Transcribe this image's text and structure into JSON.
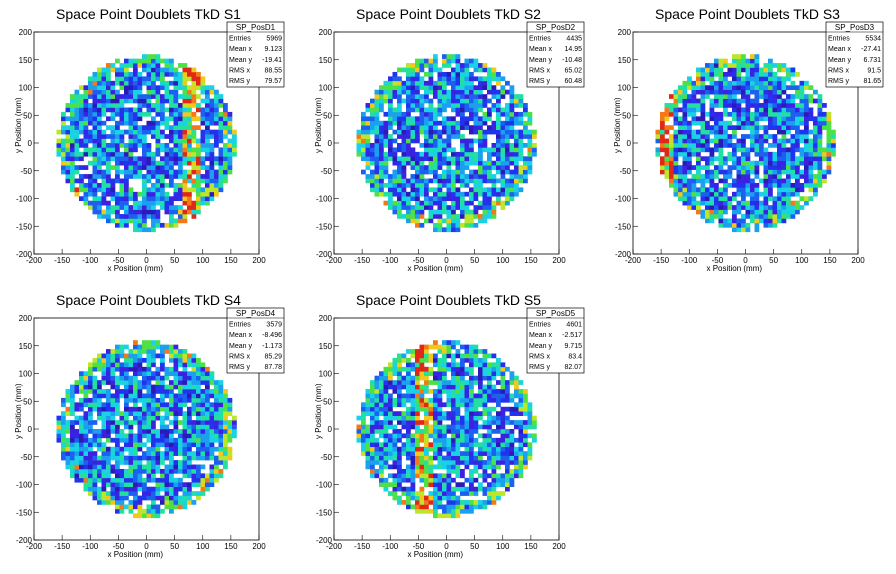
{
  "chart_data": [
    {
      "type": "heatmap",
      "title": "Space Point Doublets TkD S1",
      "xlabel": "x Position (mm)",
      "ylabel": "y Position (mm)",
      "xlim": [
        -200,
        200
      ],
      "ylim": [
        -200,
        200
      ],
      "xticks": [
        -200,
        -150,
        -100,
        -50,
        0,
        50,
        100,
        150,
        200
      ],
      "yticks": [
        -200,
        -150,
        -100,
        -50,
        0,
        50,
        100,
        150,
        200
      ],
      "occupied_radius_mm": 160,
      "hot_vertical_bands_x_mm": [
        80
      ],
      "stats": {
        "name": "SP_PosD1",
        "rows": [
          {
            "label": "Entries",
            "value": "5969"
          },
          {
            "label": "Mean x",
            "value": "9.123"
          },
          {
            "label": "Mean y",
            "value": "-19.41"
          },
          {
            "label": "RMS x",
            "value": "88.55"
          },
          {
            "label": "RMS y",
            "value": "79.57"
          }
        ]
      }
    },
    {
      "type": "heatmap",
      "title": "Space Point Doublets TkD S2",
      "xlabel": "x Position (mm)",
      "ylabel": "y Position (mm)",
      "xlim": [
        -200,
        200
      ],
      "ylim": [
        -200,
        200
      ],
      "xticks": [
        -200,
        -150,
        -100,
        -50,
        0,
        50,
        100,
        150,
        200
      ],
      "yticks": [
        -200,
        -150,
        -100,
        -50,
        0,
        50,
        100,
        150,
        200
      ],
      "occupied_radius_mm": 160,
      "hot_vertical_bands_x_mm": [],
      "stats": {
        "name": "SP_PosD2",
        "rows": [
          {
            "label": "Entries",
            "value": "4435"
          },
          {
            "label": "Mean x",
            "value": "14.95"
          },
          {
            "label": "Mean y",
            "value": "-10.48"
          },
          {
            "label": "RMS x",
            "value": "65.02"
          },
          {
            "label": "RMS y",
            "value": "60.48"
          }
        ]
      }
    },
    {
      "type": "heatmap",
      "title": "Space Point Doublets TkD S3",
      "xlabel": "x Position (mm)",
      "ylabel": "y Position (mm)",
      "xlim": [
        -200,
        200
      ],
      "ylim": [
        -200,
        200
      ],
      "xticks": [
        -200,
        -150,
        -100,
        -50,
        0,
        50,
        100,
        150,
        200
      ],
      "yticks": [
        -200,
        -150,
        -100,
        -50,
        0,
        50,
        100,
        150,
        200
      ],
      "occupied_radius_mm": 160,
      "hot_vertical_bands_x_mm": [
        -140
      ],
      "stats": {
        "name": "SP_PosD3",
        "rows": [
          {
            "label": "Entries",
            "value": "5534"
          },
          {
            "label": "Mean x",
            "value": "-27.41"
          },
          {
            "label": "Mean y",
            "value": "6.731"
          },
          {
            "label": "RMS x",
            "value": "91.5"
          },
          {
            "label": "RMS y",
            "value": "81.65"
          }
        ]
      }
    },
    {
      "type": "heatmap",
      "title": "Space Point Doublets TkD S4",
      "xlabel": "x Position (mm)",
      "ylabel": "y Position (mm)",
      "xlim": [
        -200,
        200
      ],
      "ylim": [
        -200,
        200
      ],
      "xticks": [
        -200,
        -150,
        -100,
        -50,
        0,
        50,
        100,
        150,
        200
      ],
      "yticks": [
        -200,
        -150,
        -100,
        -50,
        0,
        50,
        100,
        150,
        200
      ],
      "occupied_radius_mm": 160,
      "hot_vertical_bands_x_mm": [],
      "stats": {
        "name": "SP_PosD4",
        "rows": [
          {
            "label": "Entries",
            "value": "3579"
          },
          {
            "label": "Mean x",
            "value": "-8.496"
          },
          {
            "label": "Mean y",
            "value": "-1.173"
          },
          {
            "label": "RMS x",
            "value": "85.29"
          },
          {
            "label": "RMS y",
            "value": "87.78"
          }
        ]
      }
    },
    {
      "type": "heatmap",
      "title": "Space Point Doublets TkD S5",
      "xlabel": "x Position (mm)",
      "ylabel": "y Position (mm)",
      "xlim": [
        -200,
        200
      ],
      "ylim": [
        -200,
        200
      ],
      "xticks": [
        -200,
        -150,
        -100,
        -50,
        0,
        50,
        100,
        150,
        200
      ],
      "yticks": [
        -200,
        -150,
        -100,
        -50,
        0,
        50,
        100,
        150,
        200
      ],
      "occupied_radius_mm": 160,
      "hot_vertical_bands_x_mm": [
        -40
      ],
      "stats": {
        "name": "SP_PosD5",
        "rows": [
          {
            "label": "Entries",
            "value": "4601"
          },
          {
            "label": "Mean x",
            "value": "-2.517"
          },
          {
            "label": "Mean y",
            "value": "9.715"
          },
          {
            "label": "RMS x",
            "value": "83.4"
          },
          {
            "label": "RMS y",
            "value": "82.07"
          }
        ]
      }
    }
  ]
}
